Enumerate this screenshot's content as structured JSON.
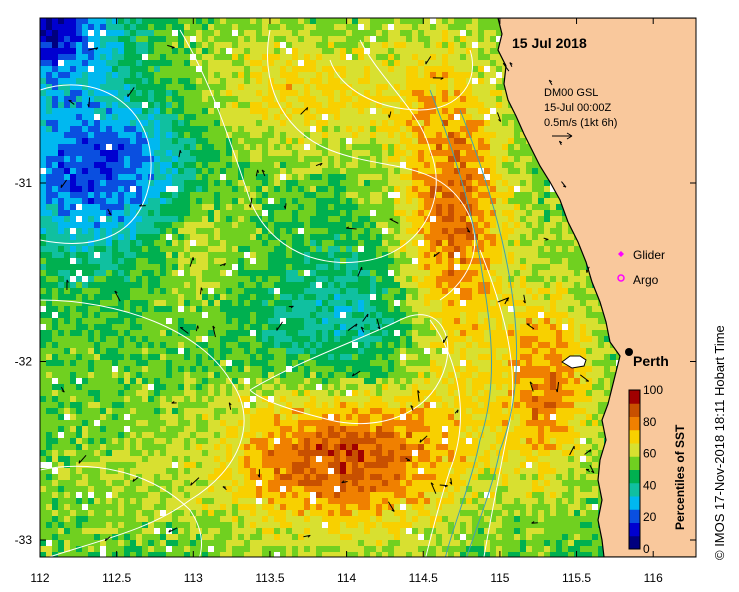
{
  "map": {
    "date_label": "15 Jul 2018",
    "velocity_legend": {
      "source": "DM00 GSL",
      "time": "15-Jul 00:00Z",
      "scale": "0.5m/s (1kt 6h)"
    },
    "legend": {
      "glider": {
        "label": "Glider",
        "color": "#ff00ff"
      },
      "argo": {
        "label": "Argo",
        "color": "#ff00ff"
      }
    },
    "place": {
      "name": "Perth",
      "lon": 115.86,
      "lat": -31.95
    },
    "credit": "© IMOS 17-Nov-2018 18:11 Hobart Time",
    "lon_ticks": [
      "112",
      "112.5",
      "113",
      "113.5",
      "114",
      "114.5",
      "115",
      "115.5",
      "116"
    ],
    "lat_ticks": [
      "-31",
      "-32",
      "-33"
    ],
    "extent": {
      "lon_min": 112,
      "lon_max": 116.3,
      "lat_min": -33.1,
      "lat_max": -30.02
    }
  },
  "colorbar": {
    "title": "Percentiles of SST",
    "ticks": [
      "0",
      "20",
      "40",
      "60",
      "80",
      "100"
    ],
    "colors": [
      "#00007f",
      "#0000d0",
      "#0a4fe0",
      "#00b8f0",
      "#10c0a0",
      "#00b050",
      "#70d020",
      "#d8e030",
      "#f8d000",
      "#f08000",
      "#c85000",
      "#a00000"
    ]
  },
  "colors": {
    "land": "#f9c89c",
    "coastline": "#000000",
    "contour": "#ffffff",
    "isobath": "#40a0b0"
  }
}
